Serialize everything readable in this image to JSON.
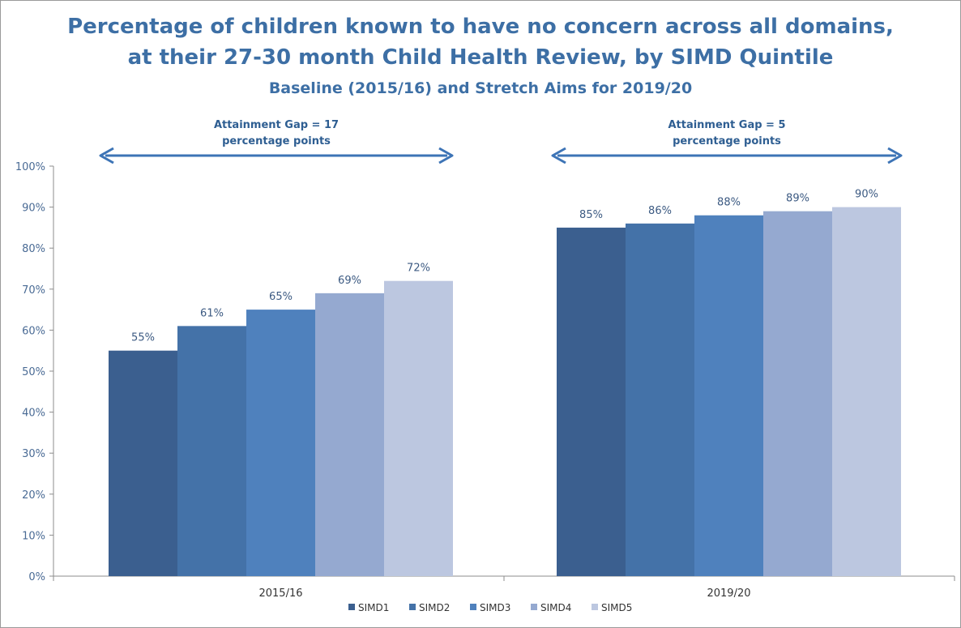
{
  "title": {
    "line1": "Percentage of children known to have no concern across all domains,",
    "line2": "at their 27-30 month Child Health Review, by SIMD Quintile",
    "subtitle": "Baseline (2015/16) and Stretch Aims for 2019/20"
  },
  "annotations": [
    {
      "line1": "Attainment Gap = 17",
      "line2": "percentage points"
    },
    {
      "line1": "Attainment Gap = 5",
      "line2": "percentage points"
    }
  ],
  "colors": {
    "title": "#3d6fa5",
    "arrow": "#3d74b6",
    "series": [
      "#3b5f8f",
      "#4472a8",
      "#4f81bd",
      "#95a9d0",
      "#bcc7e0"
    ]
  },
  "chart_data": {
    "type": "bar",
    "categories": [
      "2015/16",
      "2019/20"
    ],
    "series": [
      {
        "name": "SIMD1",
        "values": [
          55,
          85
        ],
        "labels": [
          "55%",
          "85%"
        ]
      },
      {
        "name": "SIMD2",
        "values": [
          61,
          86
        ],
        "labels": [
          "61%",
          "86%"
        ]
      },
      {
        "name": "SIMD3",
        "values": [
          65,
          88
        ],
        "labels": [
          "65%",
          "88%"
        ]
      },
      {
        "name": "SIMD4",
        "values": [
          69,
          89
        ],
        "labels": [
          "69%",
          "89%"
        ]
      },
      {
        "name": "SIMD5",
        "values": [
          72,
          90
        ],
        "labels": [
          "72%",
          "90%"
        ]
      }
    ],
    "ylim": [
      0,
      100
    ],
    "yticks": [
      "0%",
      "10%",
      "20%",
      "30%",
      "40%",
      "50%",
      "60%",
      "70%",
      "80%",
      "90%",
      "100%"
    ],
    "grid": false,
    "legend_position": "bottom"
  }
}
